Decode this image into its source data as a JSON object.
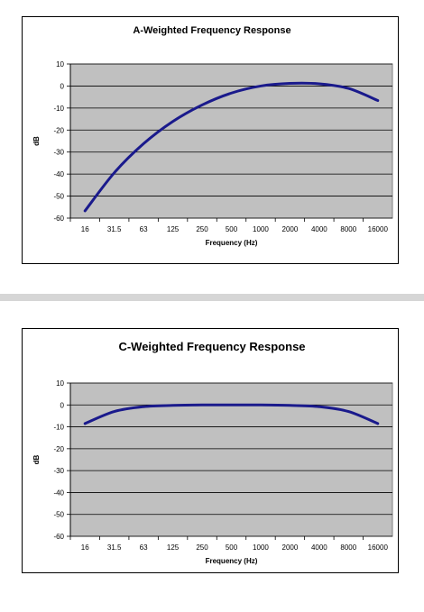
{
  "chart_data": [
    {
      "type": "line",
      "title": "A-Weighted Frequency Response",
      "xlabel": "Frequency (Hz)",
      "ylabel": "dB",
      "categories": [
        "16",
        "31.5",
        "63",
        "125",
        "250",
        "500",
        "1000",
        "2000",
        "4000",
        "8000",
        "16000"
      ],
      "values": [
        -56.7,
        -39.4,
        -26.2,
        -16.1,
        -8.6,
        -3.2,
        0.0,
        1.2,
        1.0,
        -1.1,
        -6.6
      ],
      "ylim": [
        -60,
        10
      ],
      "yticks": [
        10,
        0,
        -10,
        -20,
        -30,
        -40,
        -50,
        -60
      ],
      "grid": true,
      "line_color": "#1a1a8c",
      "plot_bg": "#c0c0c0"
    },
    {
      "type": "line",
      "title": "C-Weighted Frequency Response",
      "xlabel": "Frequency (Hz)",
      "ylabel": "dB",
      "categories": [
        "16",
        "31.5",
        "63",
        "125",
        "250",
        "500",
        "1000",
        "2000",
        "4000",
        "8000",
        "16000"
      ],
      "values": [
        -8.5,
        -3.0,
        -0.8,
        -0.2,
        0.0,
        0.0,
        0.0,
        -0.2,
        -0.8,
        -3.0,
        -8.5
      ],
      "ylim": [
        -60,
        10
      ],
      "yticks": [
        10,
        0,
        -10,
        -20,
        -30,
        -40,
        -50,
        -60
      ],
      "grid": true,
      "line_color": "#1a1a8c",
      "plot_bg": "#c0c0c0"
    }
  ]
}
